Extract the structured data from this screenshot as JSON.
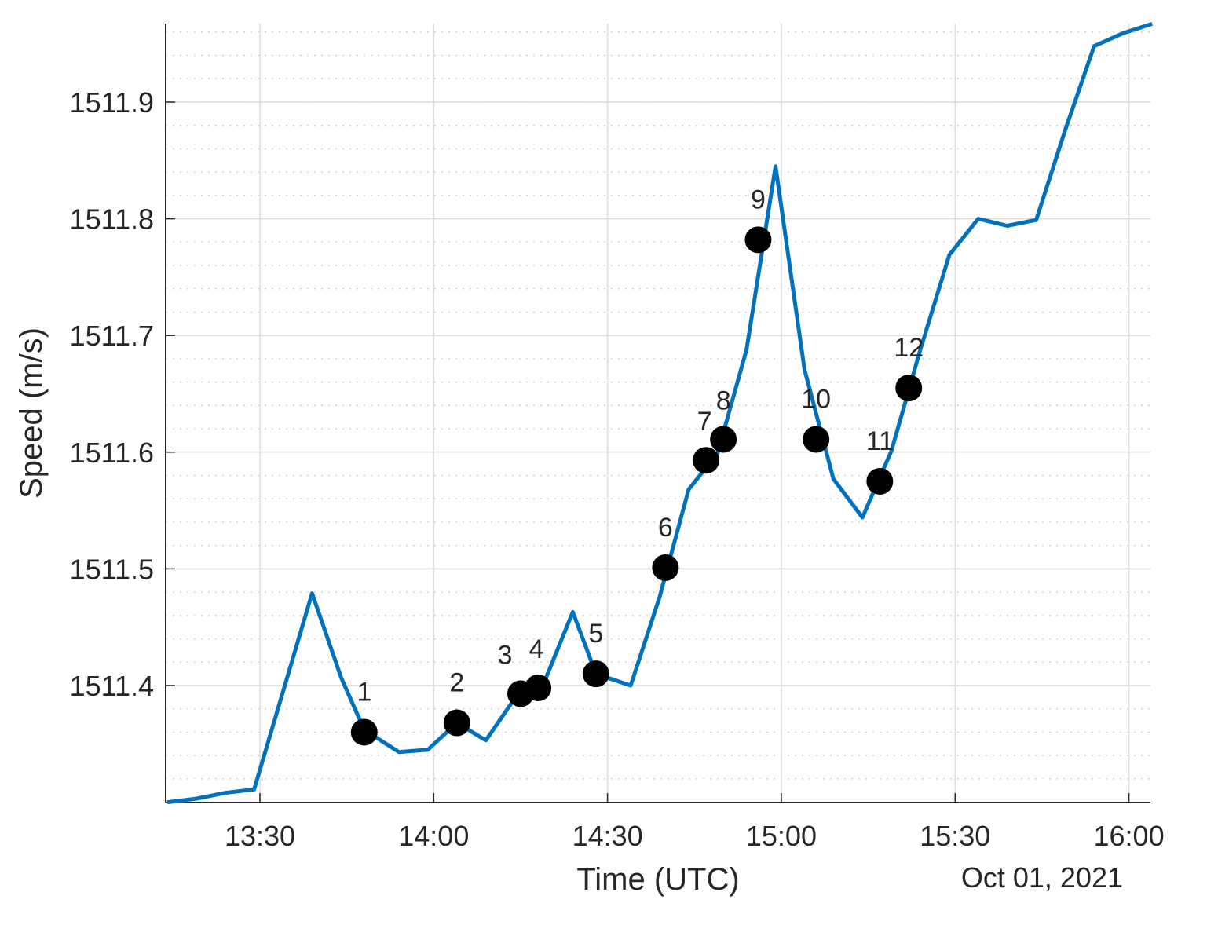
{
  "chart_data": {
    "type": "line",
    "title": "",
    "xlabel": "Time (UTC)",
    "ylabel": "Speed (m/s)",
    "date_label": "Oct 01, 2021",
    "xlim": [
      "13:14",
      "16:04"
    ],
    "ylim": [
      1511.3,
      1511.967
    ],
    "xticks": [
      "13:30",
      "14:00",
      "14:30",
      "15:00",
      "15:30",
      "16:00"
    ],
    "yticks": [
      "1511.4",
      "1511.5",
      "1511.6",
      "1511.7",
      "1511.8",
      "1511.9"
    ],
    "grid": true,
    "minor_grid": true,
    "line_color": "#0072BD",
    "marker_color": "#000000",
    "series": [
      {
        "x": [
          "13:14",
          "13:19",
          "13:24",
          "13:29",
          "13:39",
          "13:44",
          "13:48",
          "13:54",
          "13:59",
          "14:04",
          "14:09",
          "14:14",
          "14:19",
          "14:24",
          "14:28",
          "14:34",
          "14:39",
          "14:44",
          "14:49",
          "14:54",
          "14:59",
          "15:04",
          "15:09",
          "15:14",
          "15:19",
          "15:24",
          "15:29",
          "15:34",
          "15:39",
          "15:44",
          "15:49",
          "15:54",
          "15:59",
          "16:04"
        ],
        "y": [
          1511.3,
          1511.303,
          1511.308,
          1511.311,
          1511.479,
          1511.407,
          1511.362,
          1511.343,
          1511.345,
          1511.368,
          1511.353,
          1511.389,
          1511.402,
          1511.463,
          1511.41,
          1511.4,
          1511.476,
          1511.568,
          1511.599,
          1511.688,
          1511.845,
          1511.671,
          1511.577,
          1511.544,
          1511.601,
          1511.688,
          1511.769,
          1511.8,
          1511.794,
          1511.799,
          1511.876,
          1511.948,
          1511.959,
          1511.967
        ]
      }
    ],
    "markers": [
      {
        "label": "1",
        "x": "13:48",
        "y": 1511.36
      },
      {
        "label": "2",
        "x": "14:04",
        "y": 1511.368
      },
      {
        "label": "3",
        "x": "14:15",
        "y": 1511.393
      },
      {
        "label": "4",
        "x": "14:18",
        "y": 1511.398
      },
      {
        "label": "5",
        "x": "14:28",
        "y": 1511.41
      },
      {
        "label": "6",
        "x": "14:40",
        "y": 1511.501
      },
      {
        "label": "7",
        "x": "14:47",
        "y": 1511.593
      },
      {
        "label": "8",
        "x": "14:50",
        "y": 1511.611
      },
      {
        "label": "9",
        "x": "14:56",
        "y": 1511.782
      },
      {
        "label": "10",
        "x": "15:06",
        "y": 1511.611
      },
      {
        "label": "11",
        "x": "15:17",
        "y": 1511.575
      },
      {
        "label": "12",
        "x": "15:22",
        "y": 1511.655
      }
    ]
  }
}
